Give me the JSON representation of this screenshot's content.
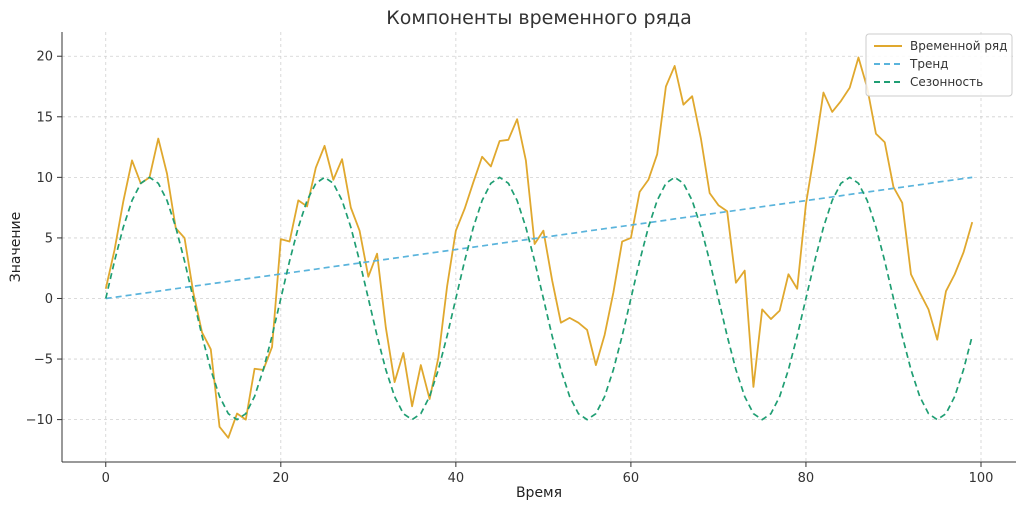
{
  "chart_data": {
    "type": "line",
    "title": "Компоненты временного ряда",
    "xlabel": "Время",
    "ylabel": "Значение",
    "xlim": [
      -5,
      104
    ],
    "ylim": [
      -13.5,
      22
    ],
    "x_ticks": [
      0,
      20,
      40,
      60,
      80,
      100
    ],
    "y_ticks": [
      -10,
      -5,
      0,
      5,
      10,
      15,
      20
    ],
    "grid": true,
    "legend_position": "top-right",
    "x": [
      0,
      1,
      2,
      3,
      4,
      5,
      6,
      7,
      8,
      9,
      10,
      11,
      12,
      13,
      14,
      15,
      16,
      17,
      18,
      19,
      20,
      21,
      22,
      23,
      24,
      25,
      26,
      27,
      28,
      29,
      30,
      31,
      32,
      33,
      34,
      35,
      36,
      37,
      38,
      39,
      40,
      41,
      42,
      43,
      44,
      45,
      46,
      47,
      48,
      49,
      50,
      51,
      52,
      53,
      54,
      55,
      56,
      57,
      58,
      59,
      60,
      61,
      62,
      63,
      64,
      65,
      66,
      67,
      68,
      69,
      70,
      71,
      72,
      73,
      74,
      75,
      76,
      77,
      78,
      79,
      80,
      81,
      82,
      83,
      84,
      85,
      86,
      87,
      88,
      89,
      90,
      91,
      92,
      93,
      94,
      95,
      96,
      97,
      98,
      99
    ],
    "series": [
      {
        "name": "Временной ряд",
        "color": "#e0a82e",
        "dash": "solid",
        "values": [
          0.8,
          4.0,
          8.0,
          11.4,
          9.5,
          10.0,
          13.2,
          10.3,
          5.8,
          5.0,
          0.5,
          -2.8,
          -4.2,
          -10.6,
          -11.5,
          -9.5,
          -10.0,
          -5.8,
          -5.9,
          -4.0,
          4.9,
          4.7,
          8.1,
          7.6,
          10.8,
          12.6,
          9.8,
          11.5,
          7.5,
          5.6,
          1.8,
          3.7,
          -2.4,
          -6.9,
          -4.5,
          -8.9,
          -5.5,
          -8.3,
          -4.9,
          1.0,
          5.6,
          7.4,
          9.6,
          11.7,
          10.9,
          13.0,
          13.1,
          14.8,
          11.4,
          4.5,
          5.6,
          1.5,
          -2.0,
          -1.6,
          -2.0,
          -2.6,
          -5.5,
          -3.0,
          0.5,
          4.7,
          5.0,
          8.8,
          9.8,
          11.9,
          17.5,
          19.2,
          16.0,
          16.7,
          13.2,
          8.7,
          7.7,
          7.2,
          1.3,
          2.3,
          -7.3,
          -0.9,
          -1.7,
          -1.0,
          2.0,
          0.8,
          7.8,
          12.2,
          17.0,
          15.4,
          16.3,
          17.4,
          19.9,
          17.4,
          13.6,
          12.9,
          9.2,
          7.9,
          2.0,
          0.5,
          -0.9,
          -3.4,
          0.6,
          2.0,
          3.8,
          6.3
        ]
      },
      {
        "name": "Тренд",
        "color": "#5ab4dc",
        "dash": "dashed",
        "values": [
          0.0,
          0.1,
          0.2,
          0.3,
          0.4,
          0.5,
          0.6,
          0.71,
          0.81,
          0.91,
          1.01,
          1.11,
          1.21,
          1.31,
          1.41,
          1.52,
          1.62,
          1.72,
          1.82,
          1.92,
          2.02,
          2.12,
          2.22,
          2.32,
          2.42,
          2.53,
          2.63,
          2.73,
          2.83,
          2.93,
          3.03,
          3.13,
          3.23,
          3.33,
          3.43,
          3.54,
          3.64,
          3.74,
          3.84,
          3.94,
          4.04,
          4.14,
          4.24,
          4.34,
          4.44,
          4.55,
          4.65,
          4.75,
          4.85,
          4.95,
          5.05,
          5.15,
          5.25,
          5.35,
          5.45,
          5.56,
          5.66,
          5.76,
          5.86,
          5.96,
          6.06,
          6.16,
          6.26,
          6.36,
          6.46,
          6.57,
          6.67,
          6.77,
          6.87,
          6.97,
          7.07,
          7.17,
          7.27,
          7.37,
          7.47,
          7.58,
          7.68,
          7.78,
          7.88,
          7.98,
          8.08,
          8.18,
          8.28,
          8.38,
          8.48,
          8.59,
          8.69,
          8.79,
          8.89,
          8.99,
          9.09,
          9.19,
          9.29,
          9.39,
          9.49,
          9.6,
          9.7,
          9.8,
          9.9,
          10.0
        ]
      },
      {
        "name": "Сезонность",
        "color": "#1f9e73",
        "dash": "dashed",
        "values": [
          0.0,
          3.09,
          5.88,
          8.09,
          9.51,
          10.0,
          9.51,
          8.09,
          5.88,
          3.09,
          0.0,
          -3.09,
          -5.88,
          -8.09,
          -9.51,
          -10.0,
          -9.51,
          -8.09,
          -5.88,
          -3.09,
          0.0,
          3.09,
          5.88,
          8.09,
          9.51,
          10.0,
          9.51,
          8.09,
          5.88,
          3.09,
          0.0,
          -3.09,
          -5.88,
          -8.09,
          -9.51,
          -10.0,
          -9.51,
          -8.09,
          -5.88,
          -3.09,
          0.0,
          3.09,
          5.88,
          8.09,
          9.51,
          10.0,
          9.51,
          8.09,
          5.88,
          3.09,
          0.0,
          -3.09,
          -5.88,
          -8.09,
          -9.51,
          -10.0,
          -9.51,
          -8.09,
          -5.88,
          -3.09,
          0.0,
          3.09,
          5.88,
          8.09,
          9.51,
          10.0,
          9.51,
          8.09,
          5.88,
          3.09,
          0.0,
          -3.09,
          -5.88,
          -8.09,
          -9.51,
          -10.0,
          -9.51,
          -8.09,
          -5.88,
          -3.09,
          0.0,
          3.09,
          5.88,
          8.09,
          9.51,
          10.0,
          9.51,
          8.09,
          5.88,
          3.09,
          0.0,
          -3.09,
          -5.88,
          -8.09,
          -9.51,
          -10.0,
          -9.51,
          -8.09,
          -5.88,
          -3.09
        ]
      }
    ]
  }
}
